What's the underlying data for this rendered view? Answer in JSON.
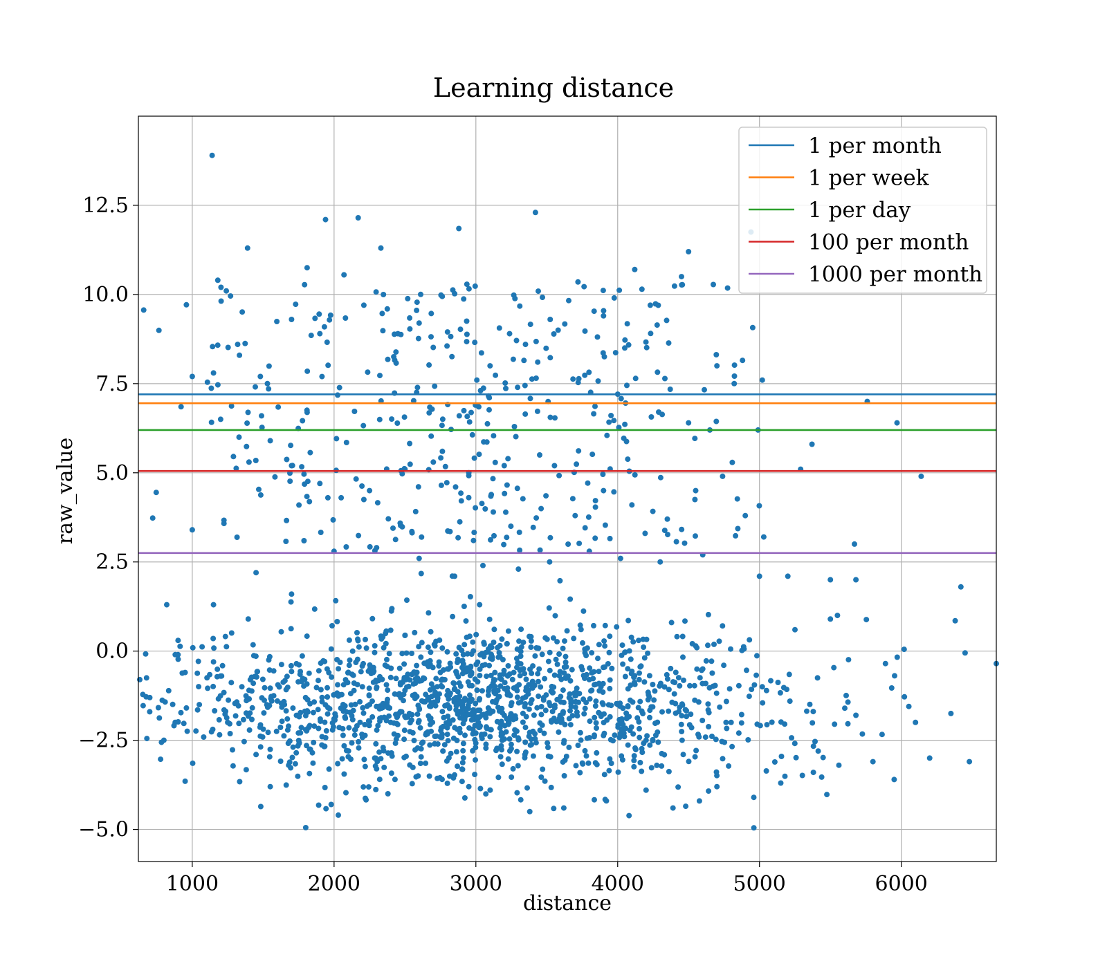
{
  "chart_data": {
    "type": "scatter",
    "title": "Learning distance",
    "xlabel": "distance",
    "ylabel": "raw_value",
    "xlim": [
      620,
      6670
    ],
    "ylim": [
      -5.9,
      15.0
    ],
    "xticks": [
      1000,
      2000,
      3000,
      4000,
      5000,
      6000
    ],
    "xtick_labels": [
      "1000",
      "2000",
      "3000",
      "4000",
      "5000",
      "6000"
    ],
    "yticks": [
      -5.0,
      -2.5,
      0.0,
      2.5,
      5.0,
      7.5,
      10.0,
      12.5
    ],
    "ytick_labels": [
      "−5.0",
      "−2.5",
      "0.0",
      "2.5",
      "5.0",
      "7.5",
      "10.0",
      "12.5"
    ],
    "grid": true,
    "legend_position": "top-right",
    "scatter_color": "#1f77b4",
    "scatter_point_count_approx": 2000,
    "scatter_points": [
      [
        1140,
        13.9
      ],
      [
        1940,
        12.1
      ],
      [
        2170,
        12.15
      ],
      [
        3420,
        12.3
      ],
      [
        2880,
        11.85
      ],
      [
        1390,
        11.3
      ],
      [
        2330,
        11.3
      ],
      [
        4940,
        11.75
      ],
      [
        1180,
        10.4
      ],
      [
        1240,
        10.1
      ],
      [
        1810,
        10.75
      ],
      [
        2070,
        10.55
      ],
      [
        4120,
        10.7
      ],
      [
        3720,
        10.35
      ],
      [
        4500,
        11.2
      ],
      [
        4450,
        10.5
      ],
      [
        1000,
        7.7
      ],
      [
        1150,
        7.8
      ],
      [
        1320,
        8.6
      ],
      [
        1480,
        7.7
      ],
      [
        1530,
        7.5
      ],
      [
        1700,
        9.3
      ],
      [
        1900,
        8.9
      ],
      [
        2210,
        9.7
      ],
      [
        2450,
        8.9
      ],
      [
        2600,
        9.2
      ],
      [
        2800,
        8.95
      ],
      [
        3100,
        8.0
      ],
      [
        3350,
        8.6
      ],
      [
        3580,
        9.0
      ],
      [
        3900,
        9.4
      ],
      [
        4050,
        8.5
      ],
      [
        4230,
        9.7
      ],
      [
        4700,
        8.0
      ],
      [
        5020,
        7.6
      ],
      [
        5760,
        7.0
      ],
      [
        5970,
        6.4
      ],
      [
        6140,
        4.9
      ],
      [
        5370,
        5.8
      ],
      [
        5290,
        5.1
      ],
      [
        4990,
        6.2
      ],
      [
        4650,
        6.2
      ],
      [
        4500,
        6.4
      ],
      [
        1000,
        3.4
      ],
      [
        1200,
        6.5
      ],
      [
        1330,
        6.0
      ],
      [
        1400,
        5.3
      ],
      [
        1550,
        5.9
      ],
      [
        1700,
        5.2
      ],
      [
        1900,
        4.7
      ],
      [
        2050,
        4.3
      ],
      [
        2250,
        4.5
      ],
      [
        2500,
        5.1
      ],
      [
        2700,
        5.3
      ],
      [
        2950,
        5.0
      ],
      [
        3200,
        5.2
      ],
      [
        3450,
        5.5
      ],
      [
        3700,
        3.8
      ],
      [
        3900,
        4.5
      ],
      [
        4100,
        4.1
      ],
      [
        4350,
        3.7
      ],
      [
        4550,
        4.5
      ],
      [
        4740,
        4.9
      ],
      [
        4900,
        3.8
      ],
      [
        5030,
        3.2
      ],
      [
        5670,
        3.0
      ],
      [
        1150,
        1.3
      ],
      [
        1450,
        2.2
      ],
      [
        1700,
        1.6
      ],
      [
        2000,
        2.8
      ],
      [
        2300,
        2.9
      ],
      [
        2600,
        2.6
      ],
      [
        2850,
        2.1
      ],
      [
        3050,
        2.4
      ],
      [
        3300,
        2.3
      ],
      [
        3520,
        2.5
      ],
      [
        3800,
        2.8
      ],
      [
        4020,
        2.6
      ],
      [
        4300,
        2.5
      ],
      [
        4600,
        2.7
      ],
      [
        5000,
        2.1
      ],
      [
        5200,
        2.1
      ],
      [
        5500,
        2.0
      ],
      [
        5680,
        2.0
      ],
      [
        5550,
        1.0
      ],
      [
        6020,
        0.05
      ],
      [
        6420,
        1.8
      ],
      [
        6380,
        0.85
      ],
      [
        6450,
        -0.05
      ],
      [
        6670,
        -0.35
      ],
      [
        6480,
        -3.1
      ],
      [
        6350,
        -1.75
      ],
      [
        6200,
        -3.0
      ],
      [
        6100,
        -2.0
      ],
      [
        5950,
        -3.6
      ],
      [
        5800,
        -3.1
      ],
      [
        630,
        -0.8
      ],
      [
        700,
        -1.7
      ],
      [
        680,
        -2.45
      ],
      [
        800,
        -2.5
      ],
      [
        820,
        1.3
      ],
      [
        880,
        -0.1
      ],
      [
        900,
        0.3
      ],
      [
        950,
        -3.65
      ],
      [
        950,
        -0.6
      ],
      [
        1050,
        -1.5
      ],
      [
        1150,
        -0.3
      ],
      [
        1250,
        -2.0
      ],
      [
        1350,
        -1.0
      ],
      [
        1450,
        -2.9
      ],
      [
        1550,
        -3.8
      ],
      [
        1650,
        -1.5
      ],
      [
        1800,
        -4.95
      ],
      [
        1980,
        -4.3
      ],
      [
        2030,
        -4.6
      ],
      [
        2150,
        -2.2
      ],
      [
        2300,
        -3.3
      ],
      [
        2380,
        -4.0
      ],
      [
        2500,
        -1.1
      ],
      [
        2650,
        -2.3
      ],
      [
        2800,
        -1.5
      ],
      [
        2950,
        -3.8
      ],
      [
        3100,
        -2.4
      ],
      [
        3380,
        -4.5
      ],
      [
        3620,
        -4.4
      ],
      [
        3920,
        -4.2
      ],
      [
        4200,
        -3.9
      ],
      [
        4390,
        -4.4
      ],
      [
        4480,
        -4.35
      ],
      [
        4700,
        -3.8
      ],
      [
        4960,
        -4.1
      ],
      [
        5150,
        -3.7
      ],
      [
        5380,
        -3.4
      ],
      [
        5560,
        -3.2
      ],
      [
        5680,
        -1.8
      ],
      [
        5500,
        0.9
      ],
      [
        5250,
        0.6
      ],
      [
        5020,
        -1.0
      ],
      [
        4800,
        -2.0
      ],
      [
        4600,
        -0.5
      ],
      [
        4400,
        -1.2
      ],
      [
        4200,
        -2.5
      ],
      [
        4000,
        -1.5
      ],
      [
        3800,
        -0.8
      ],
      [
        3600,
        -2.0
      ],
      [
        3400,
        -1.0
      ],
      [
        3200,
        -1.8
      ],
      [
        3000,
        -2.3
      ],
      [
        2800,
        -0.5
      ],
      [
        2600,
        -1.6
      ],
      [
        2400,
        -2.0
      ],
      [
        2200,
        -1.0
      ],
      [
        2000,
        -1.9
      ],
      [
        1800,
        -2.2
      ],
      [
        1600,
        -1.4
      ],
      [
        1400,
        -1.1
      ],
      [
        1200,
        -0.7
      ]
    ],
    "series": [
      {
        "name": "1 per month",
        "y": 7.2,
        "color": "#1f77b4"
      },
      {
        "name": "1 per week",
        "y": 6.95,
        "color": "#ff7f0e"
      },
      {
        "name": "1 per day",
        "y": 6.2,
        "color": "#2ca02c"
      },
      {
        "name": "100 per month",
        "y": 5.05,
        "color": "#d62728"
      },
      {
        "name": "1000 per month",
        "y": 2.75,
        "color": "#9467bd"
      }
    ]
  }
}
